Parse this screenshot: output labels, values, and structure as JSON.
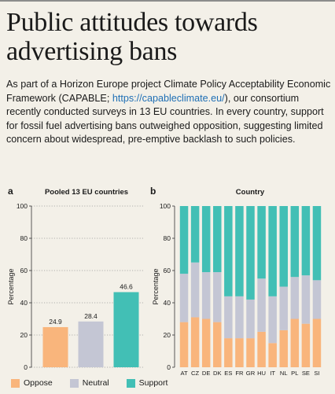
{
  "header": {
    "title": "Public attitudes towards advertising bans"
  },
  "intro": {
    "part1": "As part of a Horizon Europe project Climate Policy Acceptability Economic Framework (CAPABLE; ",
    "link": "https://capableclimate.eu/",
    "part2": "), our consortium recently conducted surveys in 13 EU countries. In every country, support for fossil fuel advertising bans outweighed opposition, suggesting limited concern about widespread, pre-emptive backlash to such policies."
  },
  "colors": {
    "oppose": "#f9b57c",
    "neutral": "#c4c6d4",
    "support": "#42bfb5"
  },
  "legend": [
    "Oppose",
    "Neutral",
    "Support"
  ],
  "chart_data": [
    {
      "type": "bar",
      "panel_label": "a",
      "title": "Pooled 13 EU countries",
      "ylabel": "Percentage",
      "ylim": [
        0,
        100
      ],
      "yticks": [
        0,
        20,
        40,
        60,
        80,
        100
      ],
      "categories": [
        "Oppose",
        "Neutral",
        "Support"
      ],
      "values": [
        24.9,
        28.4,
        46.6
      ],
      "value_labels": [
        "24.9",
        "28.4",
        "46.6"
      ]
    },
    {
      "type": "bar",
      "stacked": true,
      "panel_label": "b",
      "title": "Country",
      "ylabel": "Percentage",
      "ylim": [
        0,
        100
      ],
      "yticks": [
        0,
        20,
        40,
        60,
        80,
        100
      ],
      "categories": [
        "AT",
        "CZ",
        "DE",
        "DK",
        "ES",
        "FR",
        "GR",
        "HU",
        "IT",
        "NL",
        "PL",
        "SE",
        "SI"
      ],
      "series": [
        {
          "name": "Oppose",
          "values": [
            28,
            31,
            30,
            28,
            18,
            18,
            18,
            22,
            15,
            23,
            30,
            27,
            30
          ]
        },
        {
          "name": "Neutral",
          "values": [
            30,
            34,
            29,
            31,
            26,
            26,
            24,
            33,
            29,
            27,
            26,
            30,
            24
          ]
        },
        {
          "name": "Support",
          "values": [
            42,
            35,
            41,
            41,
            56,
            56,
            58,
            45,
            56,
            50,
            44,
            43,
            46
          ]
        }
      ]
    }
  ]
}
